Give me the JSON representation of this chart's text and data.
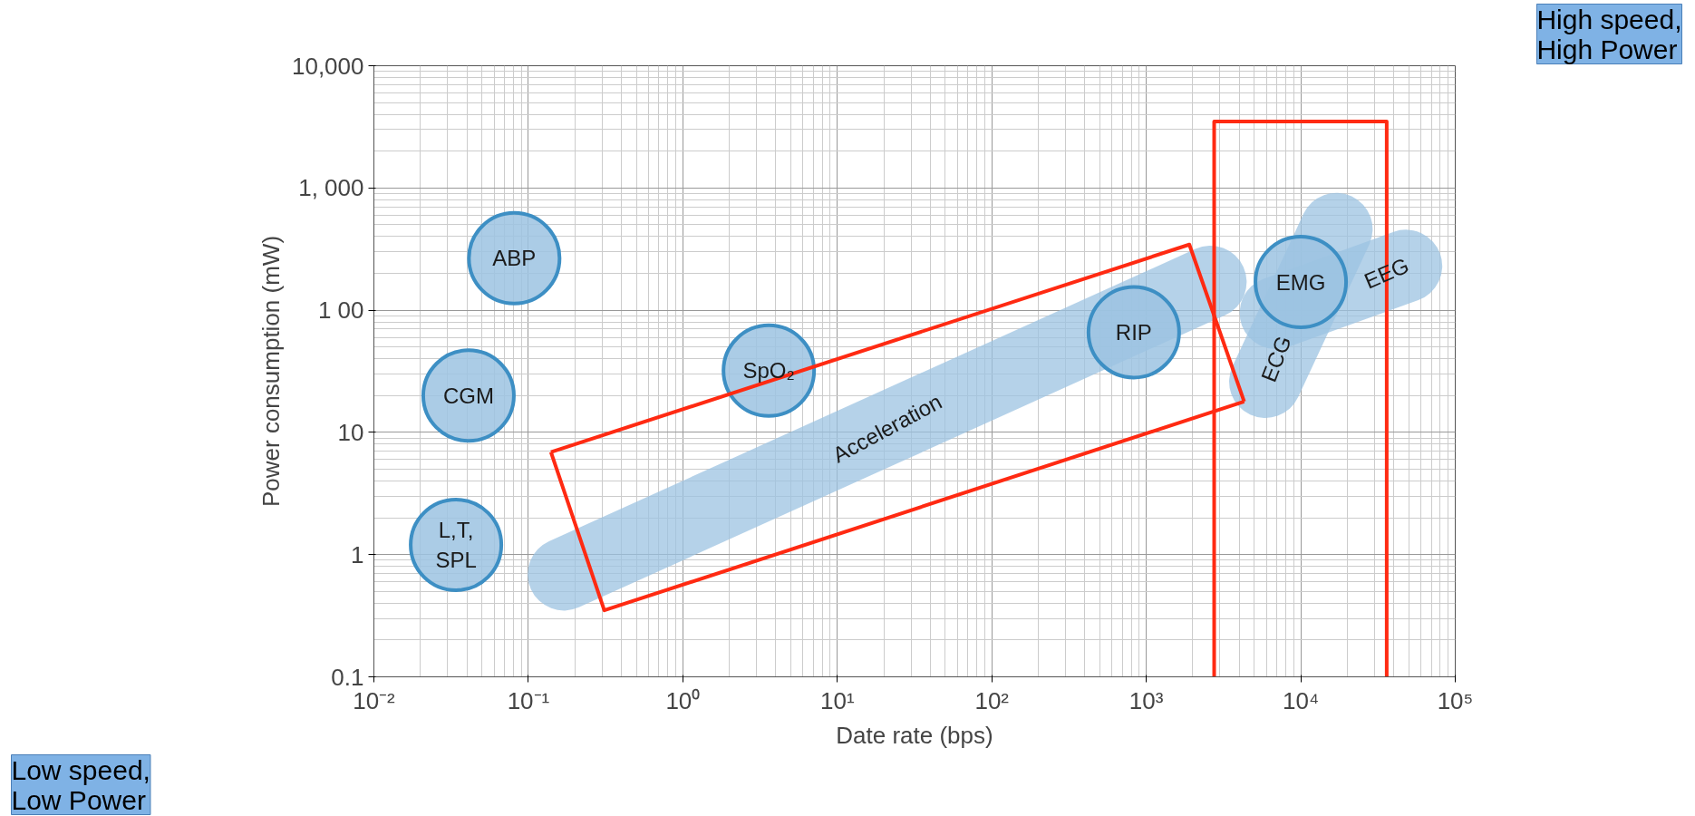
{
  "chart_data": {
    "type": "scatter",
    "xlabel": "Date rate (bps)",
    "ylabel": "Power consumption (mW)",
    "log": "xy",
    "grid": true,
    "xlim": [
      0.01,
      100000
    ],
    "ylim": [
      0.1,
      10000
    ],
    "xticks": [
      {
        "value": 0.01,
        "label": "10⁻²"
      },
      {
        "value": 0.1,
        "label": "10⁻¹"
      },
      {
        "value": 1,
        "label": "10⁰"
      },
      {
        "value": 10,
        "label": "10¹"
      },
      {
        "value": 100,
        "label": "10²"
      },
      {
        "value": 1000,
        "label": "10³"
      },
      {
        "value": 10000,
        "label": "10⁴"
      },
      {
        "value": 100000,
        "label": "10⁵"
      }
    ],
    "yticks": [
      0.1,
      1,
      10,
      {
        "value": 100,
        "label": "1 00"
      },
      {
        "value": 1000,
        "label": "1, 000"
      },
      {
        "value": 10000,
        "label": "10,000"
      }
    ],
    "series": [
      {
        "name": "Acceleration",
        "type": "line",
        "marker": "none",
        "color": "#9cc3e2",
        "x": [
          0.17,
          2600
        ],
        "values": [
          0.69,
          170
        ]
      },
      {
        "name": "EEG",
        "type": "line",
        "marker": "none",
        "color": "#9cc3e2",
        "x": [
          6900,
          48000
        ],
        "values": [
          95,
          230
        ]
      },
      {
        "name": "ECG",
        "type": "line",
        "marker": "none",
        "color": "#9cc3e2",
        "x": [
          5900,
          17000
        ],
        "values": [
          26,
          460
        ]
      },
      {
        "name": "ABP",
        "marker": "circle",
        "color": "#9cc3e2",
        "x": [
          0.081
        ],
        "values": [
          266
        ]
      },
      {
        "name": "CGM",
        "marker": "circle",
        "color": "#9cc3e2",
        "x": [
          0.041
        ],
        "values": [
          20
        ]
      },
      {
        "name": "L,T,\nSPL",
        "marker": "circle",
        "color": "#9cc3e2",
        "x": [
          0.034
        ],
        "values": [
          1.2
        ]
      },
      {
        "name": "SpO₂",
        "marker": "circle",
        "color": "#9cc3e2",
        "x": [
          3.6
        ],
        "values": [
          32
        ]
      },
      {
        "name": "RIP",
        "marker": "circle",
        "color": "#9cc3e2",
        "x": [
          830
        ],
        "values": [
          66
        ]
      },
      {
        "name": "EMG",
        "marker": "circle",
        "color": "#9cc3e2",
        "x": [
          10000
        ],
        "values": [
          170
        ]
      },
      {
        "type": "line",
        "marker": "none",
        "color": "#ff2a12",
        "x": [
          0.14,
          1900,
          4300
        ],
        "values": [
          6.9,
          344,
          17.9
        ]
      },
      {
        "type": "line",
        "marker": "none",
        "color": "#ff2a12",
        "x": [
          0.14,
          0.31,
          4300
        ],
        "values": [
          6.9,
          0.35,
          17.9
        ]
      },
      {
        "type": "line",
        "marker": "none",
        "color": "#ff2a12",
        "x": [
          2750,
          2750,
          36000,
          36000
        ],
        "values": [
          0.1,
          3500,
          3500,
          0.1
        ]
      }
    ],
    "annotations": [
      "High speed,\nHigh Power",
      "Low speed,\nLow Power"
    ]
  }
}
